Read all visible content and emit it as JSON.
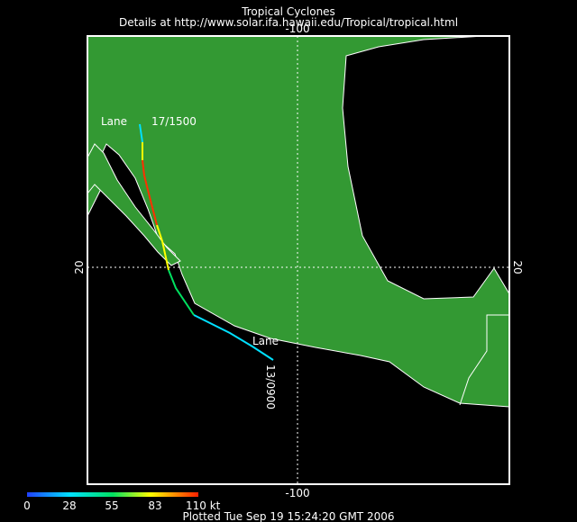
{
  "header": {
    "title": "Tropical Cyclones",
    "subtitle": "Details at http://www.solar.ifa.hawaii.edu/Tropical/tropical.html"
  },
  "map": {
    "lon_label_top": "-100",
    "lon_label_bottom": "-100",
    "lat_label_left": "20",
    "lat_label_right": "20",
    "storm_end_label": "Lane",
    "storm_end_time": "17/1500",
    "storm_start_label": "Lane",
    "storm_start_time": "13/0900"
  },
  "legend": {
    "labels": [
      "0",
      "28",
      "55",
      "83",
      "110 kt"
    ]
  },
  "footer": {
    "plotted": "Plotted Tue Sep 19 15:24:20 GMT 2006"
  }
}
